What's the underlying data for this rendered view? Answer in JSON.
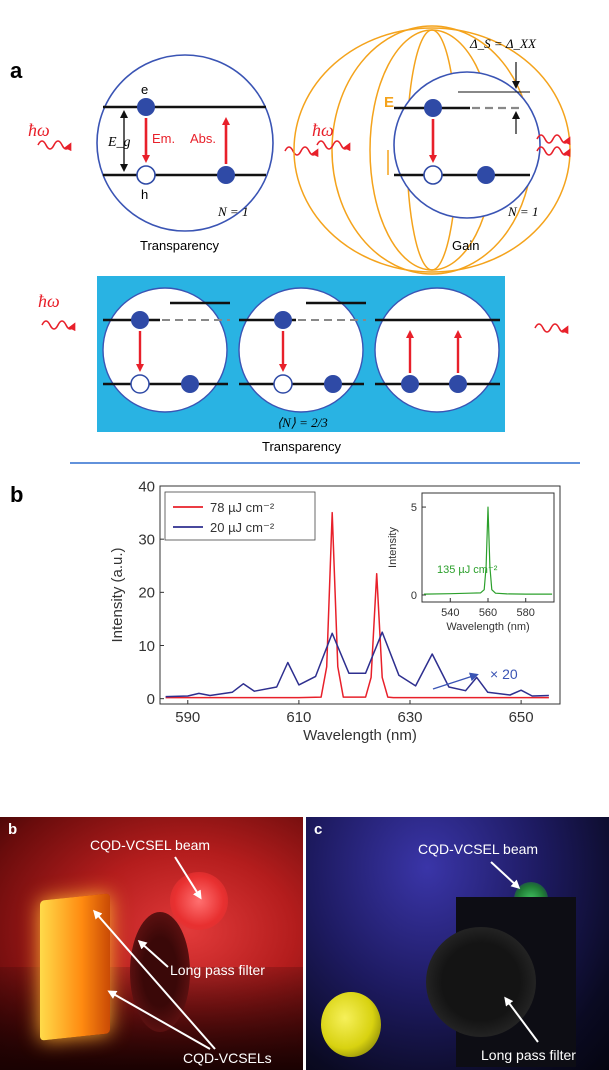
{
  "panel_a": {
    "label": "a",
    "photon": "ħω",
    "electron_label": "e",
    "hole_label": "h",
    "gap_label": "E_g",
    "em_label": "Em.",
    "abs_label": "Abs.",
    "n_label_left": "N = 1",
    "n_label_right": "N = 1",
    "field_label": "E",
    "shift_label": "Δ_S = Δ_XX",
    "caption_left": "Transparency",
    "caption_right": "Gain",
    "avg_n_label": "⟨N⟩ = 2/3",
    "caption_bottom": "Transparency"
  },
  "panel_b": {
    "label": "b",
    "inset_annotation": "135 µJ cm⁻²",
    "scale_annotation": "× 20"
  },
  "chart_data": [
    {
      "type": "line",
      "xlabel": "Wavelength (nm)",
      "ylabel": "Intensity (a.u.)",
      "xlim": [
        585,
        657
      ],
      "ylim": [
        -1,
        40
      ],
      "xticks": [
        590,
        610,
        630,
        650
      ],
      "yticks": [
        0,
        10,
        20,
        30,
        40
      ],
      "legend_position": "top-left",
      "series": [
        {
          "name": "78 µJ cm⁻²",
          "color": "#e8202a",
          "x": [
            586,
            610,
            614,
            615,
            616,
            617,
            618,
            622,
            623,
            624,
            625,
            626,
            627,
            655
          ],
          "y": [
            0.2,
            0.2,
            0.3,
            6,
            35,
            6,
            0.3,
            0.3,
            4,
            23.5,
            4,
            0.3,
            0.2,
            0.2
          ]
        },
        {
          "name": "20 µJ cm⁻²",
          "color": "#2e2f8f",
          "x": [
            586,
            590,
            592,
            594,
            598,
            600,
            602,
            606,
            608,
            610,
            613,
            616,
            619,
            622,
            625,
            628,
            631,
            634,
            637,
            640,
            642,
            644,
            648,
            650,
            652,
            655
          ],
          "y": [
            0.4,
            0.5,
            1.0,
            0.6,
            1.2,
            2.8,
            1.4,
            2.2,
            6.8,
            2.6,
            4.2,
            12.3,
            4.8,
            4.8,
            12.5,
            4.4,
            2.4,
            8.4,
            2.2,
            1.5,
            4.0,
            1.2,
            0.7,
            1.6,
            0.5,
            0.6
          ]
        }
      ]
    },
    {
      "type": "line",
      "xlabel": "Wavelength (nm)",
      "ylabel": "Intensity",
      "xlim": [
        525,
        595
      ],
      "ylim": [
        -0.4,
        5.8
      ],
      "xticks": [
        540,
        560,
        580
      ],
      "yticks": [
        0,
        5
      ],
      "series": [
        {
          "color": "#2ca02c",
          "x": [
            526,
            540,
            550,
            556,
            558,
            559,
            560,
            561,
            562,
            564,
            570,
            580,
            594
          ],
          "y": [
            0.05,
            0.07,
            0.1,
            0.12,
            0.3,
            1.6,
            5.0,
            1.6,
            0.3,
            0.1,
            0.06,
            0.05,
            0.05
          ]
        }
      ]
    }
  ],
  "photos": {
    "left": {
      "label": "b",
      "beam_label": "CQD-VCSEL beam",
      "filter_label": "Long pass filter",
      "device_label": "CQD-VCSELs"
    },
    "right": {
      "label": "c",
      "beam_label": "CQD-VCSEL beam",
      "filter_label": "Long pass filter"
    }
  }
}
